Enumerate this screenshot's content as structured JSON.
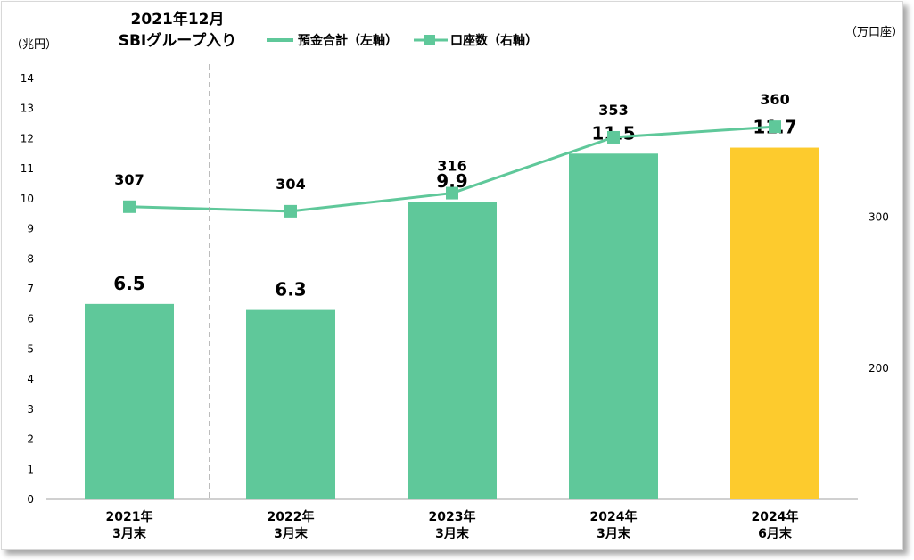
{
  "chart_data": {
    "type": "bar",
    "categories": [
      [
        "2021年",
        "3月末"
      ],
      [
        "2022年",
        "3月末"
      ],
      [
        "2023年",
        "3月末"
      ],
      [
        "2024年",
        "3月末"
      ],
      [
        "2024年",
        "6月末"
      ]
    ],
    "series": [
      {
        "name": "預金合計（左軸）",
        "type": "bar",
        "axis": "left",
        "values": [
          6.5,
          6.3,
          9.9,
          11.5,
          11.7
        ],
        "value_labels": [
          "6.5",
          "6.3",
          "9.9",
          "11.5",
          "11.7"
        ],
        "colors": [
          "#5fc89a",
          "#5fc89a",
          "#5fc89a",
          "#5fc89a",
          "#fdcb2d"
        ]
      },
      {
        "name": "口座数（右軸）",
        "type": "line",
        "axis": "right",
        "values": [
          307,
          304,
          316,
          353,
          360
        ],
        "value_labels": [
          "307",
          "304",
          "316",
          "353",
          "360"
        ],
        "color": "#5fc89a"
      }
    ],
    "y_left": {
      "unit": "（兆円）",
      "ticks": [
        "0",
        "1",
        "2",
        "3",
        "4",
        "5",
        "6",
        "7",
        "8",
        "9",
        "10",
        "11",
        "12",
        "13",
        "14"
      ],
      "ylim": [
        0,
        14
      ]
    },
    "y_right": {
      "unit": "（万口座）",
      "ticks": [
        "200",
        "300"
      ],
      "ylim": [
        113,
        392
      ]
    },
    "annotation": {
      "lines": [
        "2021年12月",
        "SBIグループ入り"
      ],
      "after_category_index": 0
    },
    "legend_position": "top"
  },
  "colors": {
    "bar": "#5fc89a",
    "highlight_bar": "#fdcb2d",
    "line": "#5fc89a",
    "divider": "#a6a6a6"
  }
}
